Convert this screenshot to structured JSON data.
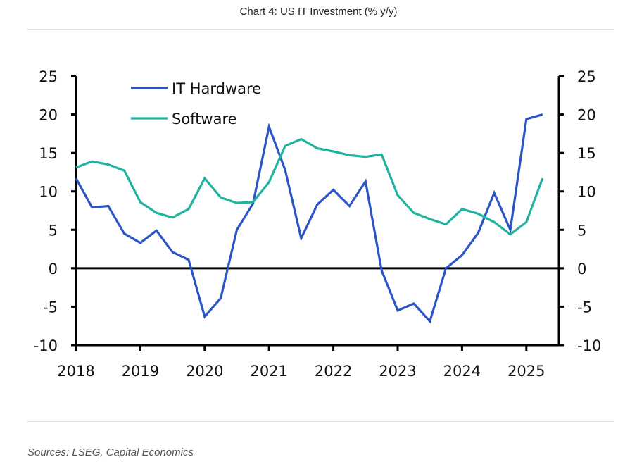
{
  "title": "Chart 4: US IT Investment (% y/y)",
  "source": "Sources: LSEG, Capital Economics",
  "chart_data": {
    "type": "line",
    "title": "Chart 4: US IT Investment (% y/y)",
    "xlabel": "",
    "ylabel": "",
    "x_ticks": [
      "2018",
      "2019",
      "2020",
      "2021",
      "2022",
      "2023",
      "2024",
      "2025"
    ],
    "x_range": [
      2018.0,
      2025.75
    ],
    "ylim": [
      -10,
      25
    ],
    "y_ticks": [
      25,
      20,
      15,
      10,
      5,
      0,
      -5,
      -10
    ],
    "y_tick_labels": [
      "25",
      "20",
      "15",
      "10",
      "5",
      "0",
      "-5",
      "-10"
    ],
    "secondary_y_ticks": [
      "25",
      "20",
      "15",
      "10",
      "5",
      "0",
      "-5",
      "-10"
    ],
    "zero_line": true,
    "grid": false,
    "legend_position": "top-left",
    "x": [
      "2018Q1",
      "2018Q2",
      "2018Q3",
      "2018Q4",
      "2019Q1",
      "2019Q2",
      "2019Q3",
      "2019Q4",
      "2020Q1",
      "2020Q2",
      "2020Q3",
      "2020Q4",
      "2021Q1",
      "2021Q2",
      "2021Q3",
      "2021Q4",
      "2022Q1",
      "2022Q2",
      "2022Q3",
      "2022Q4",
      "2023Q1",
      "2023Q2",
      "2023Q3",
      "2023Q4",
      "2024Q1",
      "2024Q2",
      "2024Q3",
      "2024Q4",
      "2025Q1",
      "2025Q2"
    ],
    "series": [
      {
        "name": "IT Hardware",
        "color": "#2a55c9",
        "values": [
          11.7,
          7.9,
          8.1,
          4.5,
          3.3,
          4.9,
          2.1,
          1.1,
          -6.3,
          -3.9,
          5.0,
          8.4,
          18.4,
          12.8,
          3.9,
          8.3,
          10.2,
          8.1,
          11.3,
          -0.3,
          -5.5,
          -4.6,
          -6.9,
          0.0,
          1.7,
          4.6,
          9.8,
          5.0,
          19.4,
          20.0
        ]
      },
      {
        "name": "Software",
        "color": "#1fb3a0",
        "values": [
          13.1,
          13.9,
          13.5,
          12.7,
          8.6,
          7.2,
          6.6,
          7.7,
          11.7,
          9.2,
          8.5,
          8.6,
          11.2,
          15.9,
          16.8,
          15.6,
          15.2,
          14.7,
          14.5,
          14.8,
          9.5,
          7.2,
          6.4,
          5.7,
          7.7,
          7.1,
          6.0,
          4.4,
          6.0,
          11.7
        ]
      }
    ]
  }
}
